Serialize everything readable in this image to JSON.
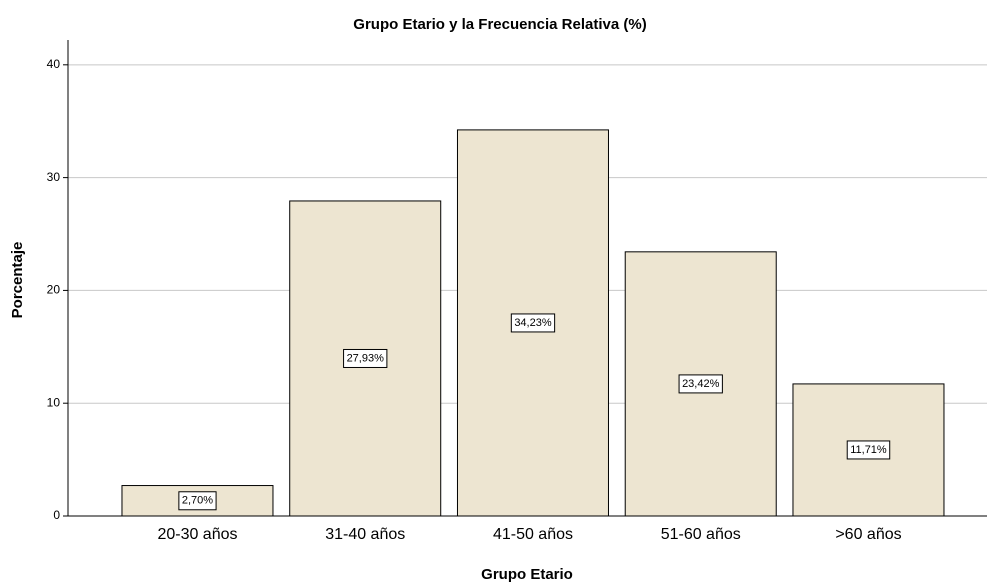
{
  "chart_data": {
    "type": "bar",
    "title": "Grupo Etario y la Frecuencia Relativa (%)",
    "x_label": "Grupo Etario",
    "y_label": "Porcentaje",
    "categories": [
      "20-30 años",
      "31-40 años",
      "41-50 años",
      "51-60 años",
      ">60 años"
    ],
    "values": [
      2.7,
      27.93,
      34.23,
      23.42,
      11.71
    ],
    "value_labels": [
      "2,70%",
      "27,93%",
      "34,23%",
      "23,42%",
      "11,71%"
    ],
    "color": "#ede5d1",
    "ylim": [
      0,
      42.2
    ],
    "yticks": [
      0,
      10,
      20,
      30,
      40
    ],
    "grid": true
  }
}
